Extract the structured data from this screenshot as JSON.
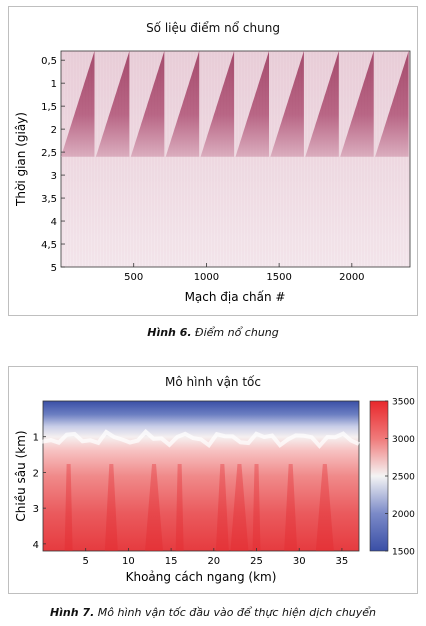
{
  "figure6": {
    "title": "Số liệu điểm nổ chung",
    "caption_label": "Hình 6.",
    "caption_text": "Điểm nổ chung",
    "chart_data": {
      "type": "heatmap",
      "title": "Số liệu điểm nổ chung",
      "xlabel": "Mạch địa chấn #",
      "ylabel": "Thời gian (giây)",
      "xlim": [
        0,
        2400
      ],
      "ylim": [
        5,
        0.3
      ],
      "x_ticks": [
        "500",
        "1000",
        "1500",
        "2000"
      ],
      "x_tick_values": [
        500,
        1000,
        1500,
        2000
      ],
      "y_ticks": [
        "0,5",
        "1",
        "1,5",
        "2",
        "2,5",
        "3",
        "3,5",
        "4",
        "4,5",
        "5"
      ],
      "y_tick_values": [
        0.5,
        1,
        1.5,
        2,
        2.5,
        3,
        3.5,
        4,
        4.5,
        5
      ],
      "shot_gathers": 10,
      "colors": {
        "wedge": "#9c3a5e",
        "background": "#f3e4ea"
      }
    }
  },
  "figure7": {
    "title": "Mô hình vận tốc",
    "caption_label": "Hình 7.",
    "caption_text": "Mô hình vận tốc đầu vào để thực hiện dịch chuyển",
    "chart_data": {
      "type": "heatmap",
      "title": "Mô hình vận tốc",
      "xlabel": "Khoảng cách ngang (km)",
      "ylabel": "Chiều sâu (km)",
      "xlim": [
        0,
        37
      ],
      "ylim": [
        4.2,
        0
      ],
      "x_ticks": [
        "5",
        "10",
        "15",
        "20",
        "25",
        "30",
        "35"
      ],
      "x_tick_values": [
        5,
        10,
        15,
        20,
        25,
        30,
        35
      ],
      "y_ticks": [
        "1",
        "2",
        "3",
        "4"
      ],
      "y_tick_values": [
        1,
        2,
        3,
        4
      ],
      "colorbar": {
        "min": 1500,
        "max": 3500,
        "ticks": [
          "3500",
          "3000",
          "2500",
          "2000",
          "1500"
        ],
        "tick_values": [
          3500,
          3000,
          2500,
          2000,
          1500
        ]
      },
      "colors": {
        "low": "#3a4fa6",
        "mid": "#f4f4f4",
        "high": "#e8282c"
      }
    }
  }
}
